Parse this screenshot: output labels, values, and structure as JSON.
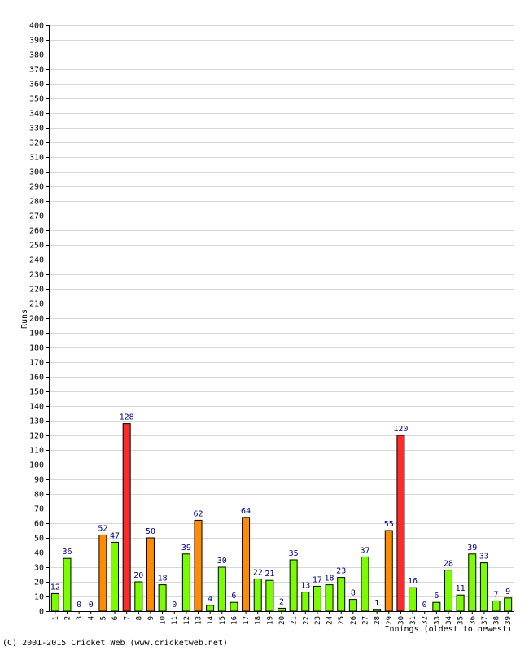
{
  "chart_data": {
    "type": "bar",
    "xlabel": "Innings (oldest to newest)",
    "ylabel": "Runs",
    "ylim": [
      0,
      400
    ],
    "ytick_step": 10,
    "grid": true,
    "categories": [
      "1",
      "2",
      "3",
      "4",
      "5",
      "6",
      "7",
      "8",
      "9",
      "10",
      "11",
      "12",
      "13",
      "14",
      "15",
      "16",
      "17",
      "18",
      "19",
      "20",
      "21",
      "22",
      "23",
      "24",
      "25",
      "26",
      "27",
      "28",
      "29",
      "30",
      "31",
      "32",
      "33",
      "34",
      "35",
      "36",
      "37",
      "38",
      "39"
    ],
    "values": [
      12,
      36,
      0,
      0,
      52,
      47,
      128,
      20,
      50,
      18,
      0,
      39,
      62,
      4,
      30,
      6,
      64,
      22,
      21,
      2,
      35,
      13,
      17,
      18,
      23,
      8,
      37,
      1,
      55,
      120,
      16,
      0,
      6,
      28,
      11,
      39,
      33,
      7,
      9
    ],
    "colors": {
      "under_50": "#7cfc00",
      "fifty": "#ff8c00",
      "hundred": "#ff2a2a",
      "label": "#000080",
      "grid": "#d8d8d8"
    }
  },
  "footer": {
    "copyright": "(C) 2001-2015 Cricket Web (www.cricketweb.net)"
  }
}
